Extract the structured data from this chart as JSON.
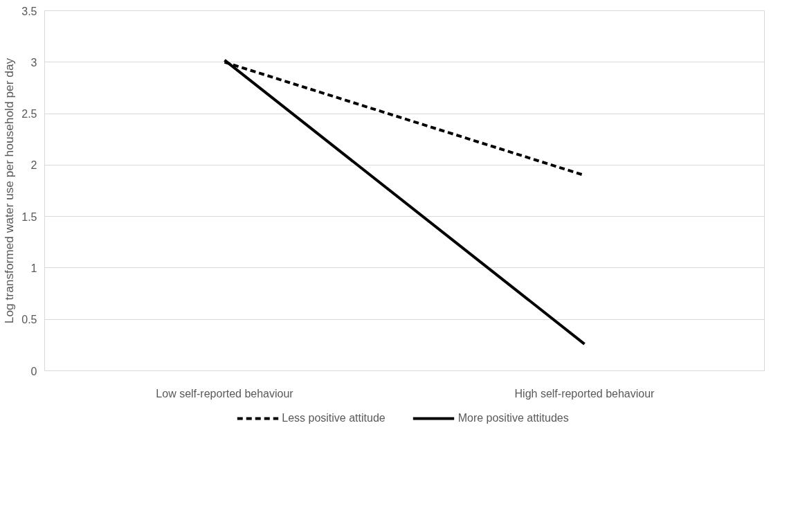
{
  "chart_data": {
    "type": "line",
    "ylabel": "Log transformed water use per household per day",
    "categories": [
      "Low self-reported behaviour",
      "High self-reported behaviour"
    ],
    "series": [
      {
        "name": "Less positive attitude",
        "color": "#000000",
        "values": [
          3.0,
          1.9
        ],
        "line_style": "dashed"
      },
      {
        "name": "More positive attitudes",
        "color": "#000000",
        "values": [
          3.02,
          0.26
        ],
        "line_style": "solid"
      }
    ],
    "ylim": [
      0,
      3.5
    ],
    "yticks": [
      0,
      0.5,
      1,
      1.5,
      2,
      2.5,
      3,
      3.5
    ],
    "grid": "y",
    "legend": "bottom",
    "marker": "none"
  }
}
